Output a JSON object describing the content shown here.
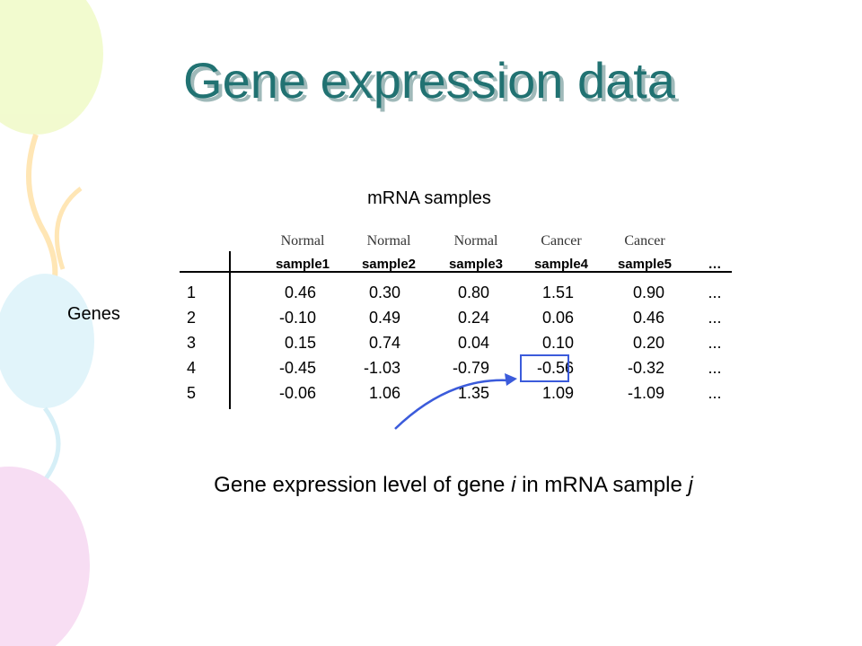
{
  "title": "Gene expression data",
  "columns_label": "mRNA samples",
  "rows_label": "Genes",
  "table": {
    "groups": [
      "Normal",
      "Normal",
      "Normal",
      "Cancer",
      "Cancer"
    ],
    "header": [
      "sample1",
      "sample2",
      "sample3",
      "sample4",
      "sample5",
      "…"
    ],
    "rows": [
      [
        "1",
        "0.46",
        "0.30",
        "0.80",
        "1.51",
        "0.90",
        "..."
      ],
      [
        "2",
        "-0.10",
        "0.49",
        "0.24",
        "0.06",
        "0.46",
        "..."
      ],
      [
        "3",
        "0.15",
        "0.74",
        "0.04",
        "0.10",
        "0.20",
        "..."
      ],
      [
        "4",
        "-0.45",
        "-1.03",
        "-0.79",
        "-0.56",
        "-0.32",
        "..."
      ],
      [
        "5",
        "-0.06",
        "1.06",
        "1.35",
        "1.09",
        "-1.09",
        "..."
      ]
    ]
  },
  "caption": [
    "Gene expression level of gene ",
    "i",
    " in mRNA sample ",
    "j"
  ]
}
